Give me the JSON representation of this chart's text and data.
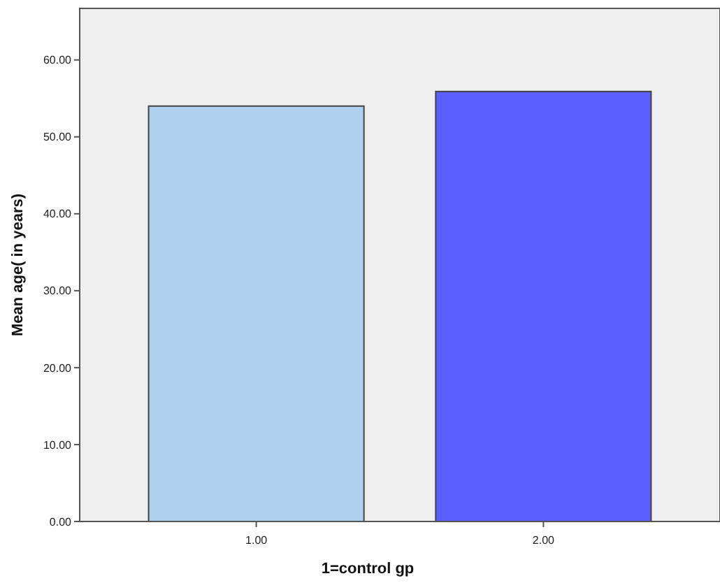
{
  "chart_data": {
    "type": "bar",
    "xlabel": "1=control gp",
    "ylabel": "Mean age( in years)",
    "categories": [
      "1.00",
      "2.00"
    ],
    "values": [
      54.0,
      55.9
    ],
    "colors": [
      "#aecfee",
      "#5b5fff"
    ],
    "ylim": [
      0,
      66.7
    ],
    "yticks": [
      {
        "value": 0,
        "label": "0.00"
      },
      {
        "value": 10,
        "label": "10.00"
      },
      {
        "value": 20,
        "label": "20.00"
      },
      {
        "value": 30,
        "label": "30.00"
      },
      {
        "value": 40,
        "label": "40.00"
      },
      {
        "value": 50,
        "label": "50.00"
      },
      {
        "value": 60,
        "label": "60.00"
      }
    ],
    "grid": false
  }
}
